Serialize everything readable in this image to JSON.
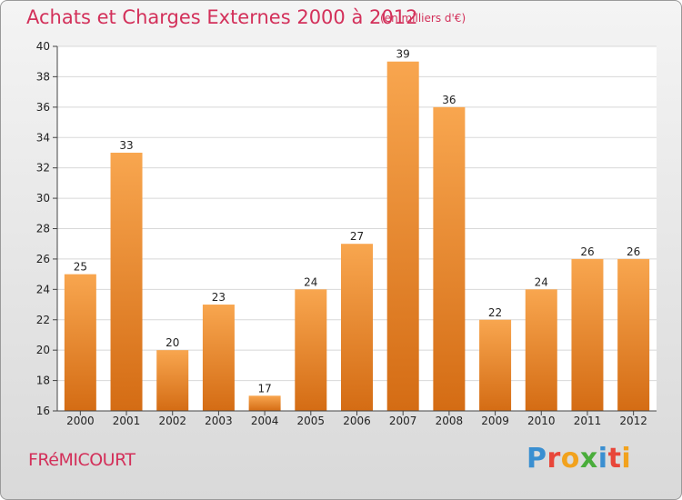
{
  "header": {
    "title": "Achats et Charges Externes 2000 à 2012",
    "subtitle": "(en milliers d'€)"
  },
  "footer": {
    "place": "FRéMICOURT",
    "logo_letters": [
      {
        "char": "P",
        "color": "#3a8fd1"
      },
      {
        "char": "r",
        "color": "#e8463a"
      },
      {
        "char": "o",
        "color": "#f2a21d"
      },
      {
        "char": "x",
        "color": "#4aad3b"
      },
      {
        "char": "i",
        "color": "#3a8fd1"
      },
      {
        "char": "t",
        "color": "#e8463a"
      },
      {
        "char": "i",
        "color": "#f2a21d"
      }
    ]
  },
  "chart_data": {
    "type": "bar",
    "title": "Achats et Charges Externes 2000 à 2012",
    "subtitle": "(en milliers d'€)",
    "categories": [
      "2000",
      "2001",
      "2002",
      "2003",
      "2004",
      "2005",
      "2006",
      "2007",
      "2008",
      "2009",
      "2010",
      "2011",
      "2012"
    ],
    "values": [
      25,
      33,
      20,
      23,
      17,
      24,
      27,
      39,
      36,
      22,
      24,
      26,
      26
    ],
    "ylim": [
      16,
      40
    ],
    "yticks": [
      16,
      18,
      20,
      22,
      24,
      26,
      28,
      30,
      32,
      34,
      36,
      38,
      40
    ],
    "grid": true,
    "legend": "none",
    "colors": {
      "bar_light": "#f8a64f",
      "bar_dark": "#d46c14",
      "grid": "#d8d8d8",
      "title": "#d3305a"
    }
  }
}
